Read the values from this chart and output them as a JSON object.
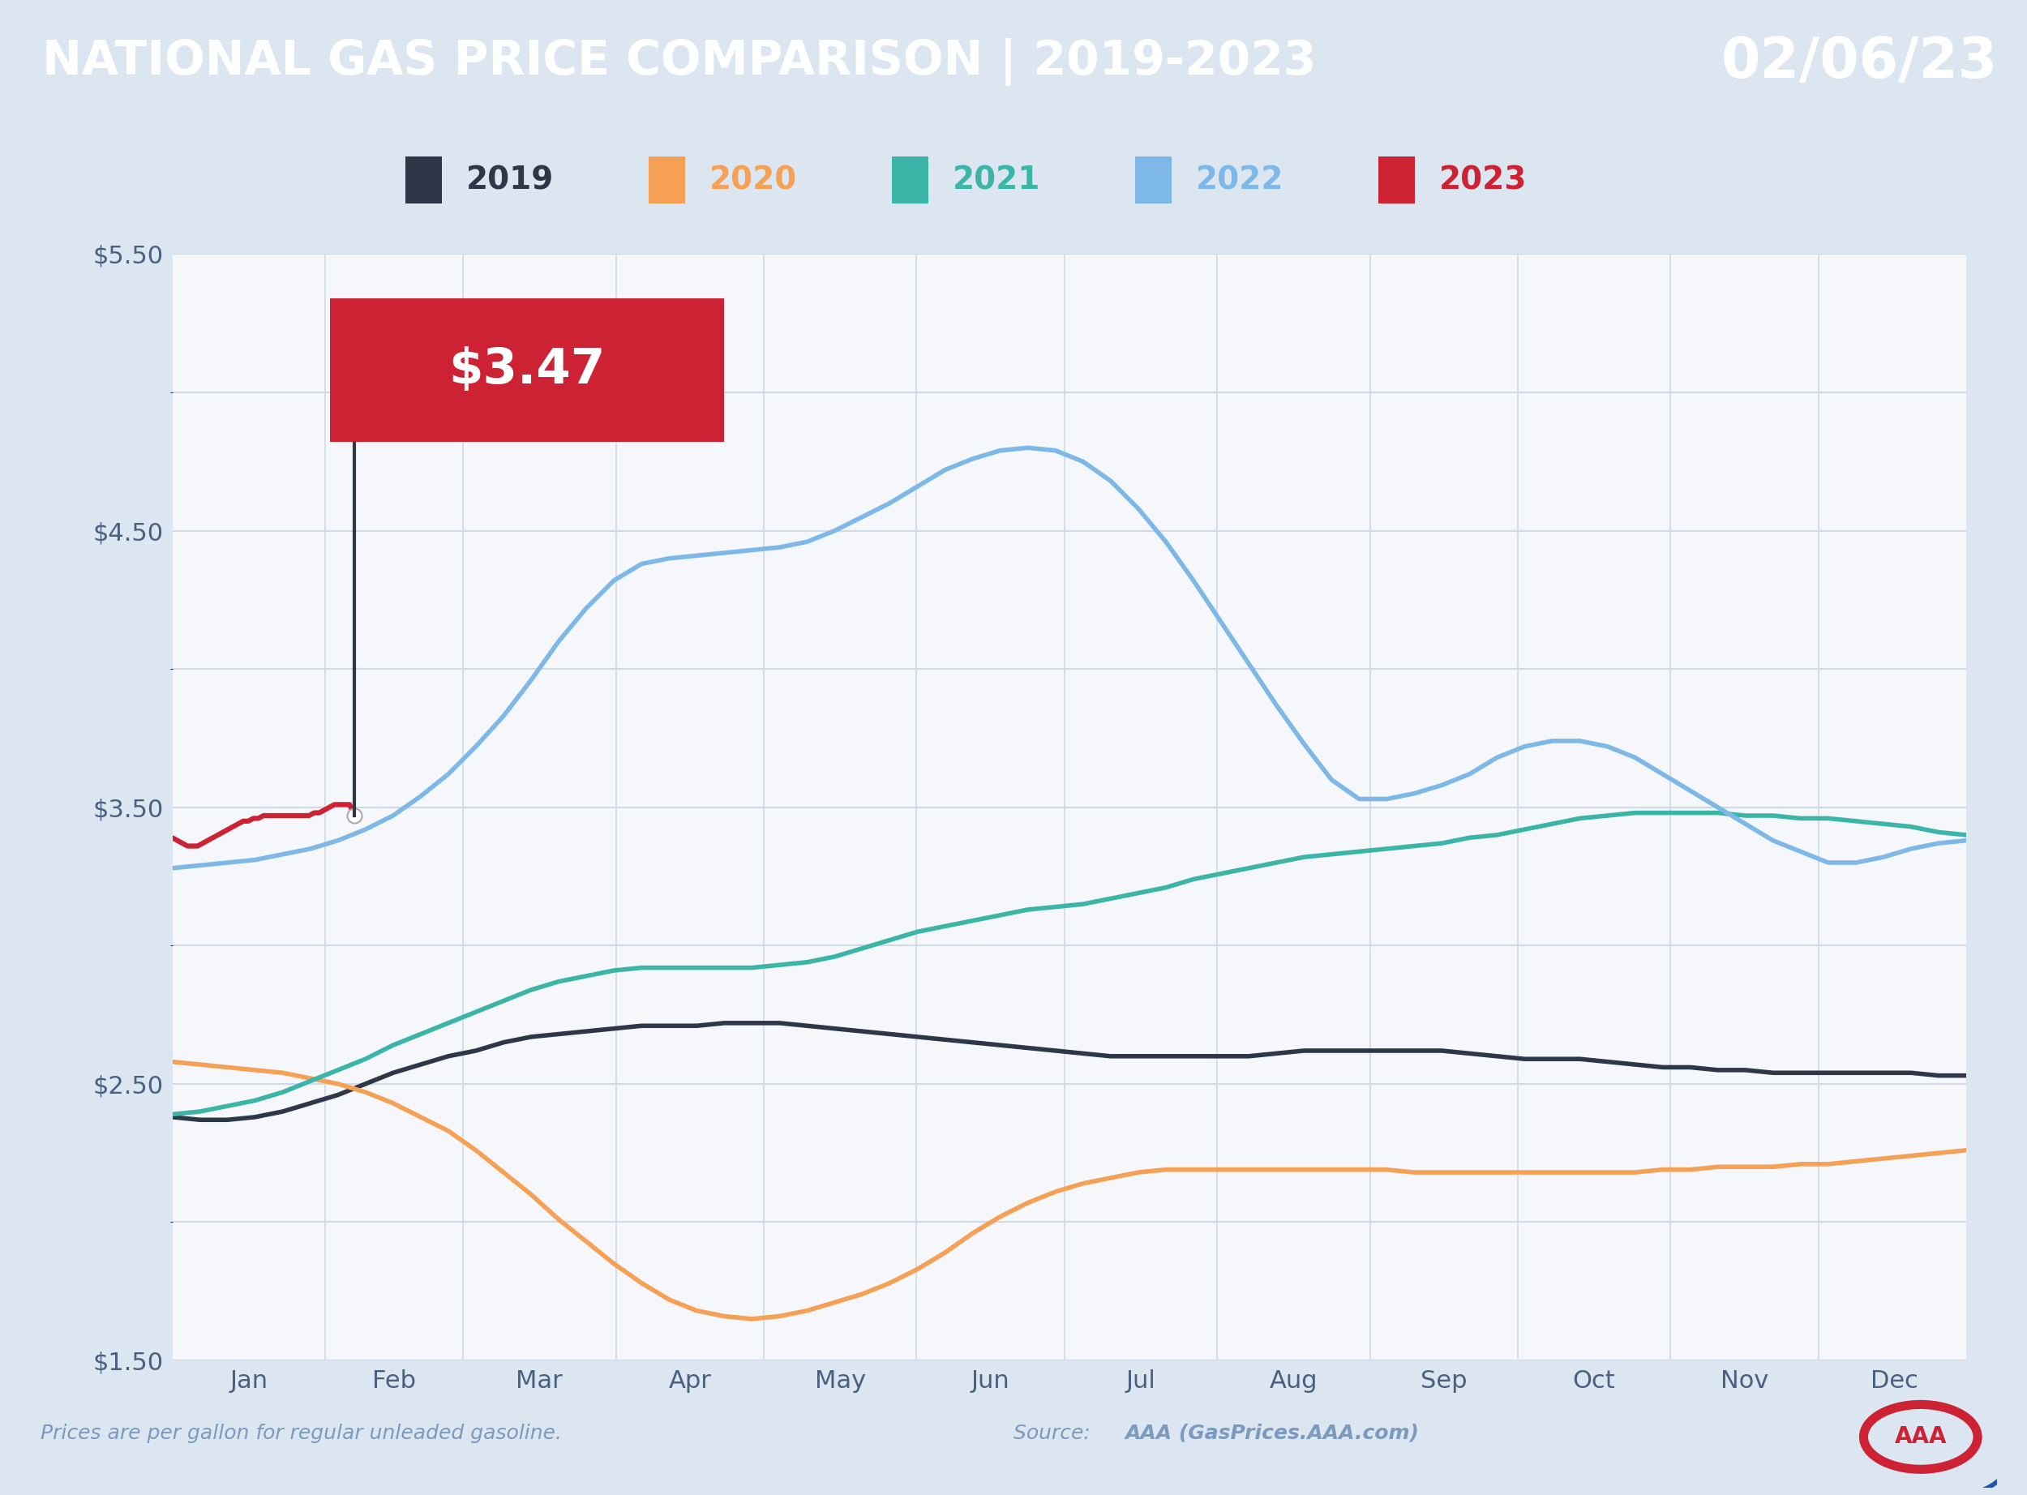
{
  "title_left": "NATIONAL GAS PRICE COMPARISON | 2019-2023",
  "title_right": "02/06/23",
  "title_bg_color": "#1b4f8c",
  "title_right_bg_color": "#5b9bd5",
  "title_text_color": "#ffffff",
  "background_color": "#dce6f0",
  "chart_bg_color": "#f5f7fa",
  "footer_text_left": "Prices are per gallon for regular unleaded gasoline.",
  "footer_text_right": "Source: ",
  "footer_text_right_bold": "AAA (GasPrices.AAA.com)",
  "footer_text_color": "#7a9abf",
  "legend_years": [
    "2019",
    "2020",
    "2021",
    "2022",
    "2023"
  ],
  "legend_colors": [
    "#2d3748",
    "#f5a054",
    "#3ab5a8",
    "#7db8e8",
    "#cc2233"
  ],
  "annotation_text": "$3.47",
  "annotation_box_color": "#cc2233",
  "annotation_text_color": "#ffffff",
  "ylim": [
    1.5,
    5.5
  ],
  "yticks": [
    1.5,
    2.5,
    3.5,
    4.5,
    5.5
  ],
  "ytick_labels": [
    "$1.50",
    "$2.50",
    "$3.50",
    "$4.50",
    "$5.50"
  ],
  "yticks_minor": [
    2.0,
    3.0,
    4.0,
    5.0
  ],
  "months": [
    "Jan",
    "Feb",
    "Mar",
    "Apr",
    "May",
    "Jun",
    "Jul",
    "Aug",
    "Sep",
    "Oct",
    "Nov",
    "Dec"
  ],
  "grid_color": "#d0dae6",
  "line_width": 4.0,
  "series_2019": [
    2.38,
    2.37,
    2.37,
    2.38,
    2.4,
    2.43,
    2.46,
    2.5,
    2.54,
    2.57,
    2.6,
    2.62,
    2.65,
    2.67,
    2.68,
    2.69,
    2.7,
    2.71,
    2.71,
    2.71,
    2.72,
    2.72,
    2.72,
    2.71,
    2.7,
    2.69,
    2.68,
    2.67,
    2.66,
    2.65,
    2.64,
    2.63,
    2.62,
    2.61,
    2.6,
    2.6,
    2.6,
    2.6,
    2.6,
    2.6,
    2.61,
    2.62,
    2.62,
    2.62,
    2.62,
    2.62,
    2.62,
    2.61,
    2.6,
    2.59,
    2.59,
    2.59,
    2.58,
    2.57,
    2.56,
    2.56,
    2.55,
    2.55,
    2.54,
    2.54,
    2.54,
    2.54,
    2.54,
    2.54,
    2.53,
    2.53
  ],
  "series_2020": [
    2.58,
    2.57,
    2.56,
    2.55,
    2.54,
    2.52,
    2.5,
    2.47,
    2.43,
    2.38,
    2.33,
    2.26,
    2.18,
    2.1,
    2.01,
    1.93,
    1.85,
    1.78,
    1.72,
    1.68,
    1.66,
    1.65,
    1.66,
    1.68,
    1.71,
    1.74,
    1.78,
    1.83,
    1.89,
    1.96,
    2.02,
    2.07,
    2.11,
    2.14,
    2.16,
    2.18,
    2.19,
    2.19,
    2.19,
    2.19,
    2.19,
    2.19,
    2.19,
    2.19,
    2.19,
    2.18,
    2.18,
    2.18,
    2.18,
    2.18,
    2.18,
    2.18,
    2.18,
    2.18,
    2.19,
    2.19,
    2.2,
    2.2,
    2.2,
    2.21,
    2.21,
    2.22,
    2.23,
    2.24,
    2.25,
    2.26
  ],
  "series_2021": [
    2.39,
    2.4,
    2.42,
    2.44,
    2.47,
    2.51,
    2.55,
    2.59,
    2.64,
    2.68,
    2.72,
    2.76,
    2.8,
    2.84,
    2.87,
    2.89,
    2.91,
    2.92,
    2.92,
    2.92,
    2.92,
    2.92,
    2.93,
    2.94,
    2.96,
    2.99,
    3.02,
    3.05,
    3.07,
    3.09,
    3.11,
    3.13,
    3.14,
    3.15,
    3.17,
    3.19,
    3.21,
    3.24,
    3.26,
    3.28,
    3.3,
    3.32,
    3.33,
    3.34,
    3.35,
    3.36,
    3.37,
    3.39,
    3.4,
    3.42,
    3.44,
    3.46,
    3.47,
    3.48,
    3.48,
    3.48,
    3.48,
    3.47,
    3.47,
    3.46,
    3.46,
    3.45,
    3.44,
    3.43,
    3.41,
    3.4
  ],
  "series_2022": [
    3.28,
    3.29,
    3.3,
    3.31,
    3.33,
    3.35,
    3.38,
    3.42,
    3.47,
    3.54,
    3.62,
    3.72,
    3.83,
    3.96,
    4.1,
    4.22,
    4.32,
    4.38,
    4.4,
    4.41,
    4.42,
    4.43,
    4.44,
    4.46,
    4.5,
    4.55,
    4.6,
    4.66,
    4.72,
    4.76,
    4.79,
    4.8,
    4.79,
    4.75,
    4.68,
    4.58,
    4.46,
    4.32,
    4.17,
    4.02,
    3.87,
    3.73,
    3.6,
    3.53,
    3.53,
    3.55,
    3.58,
    3.62,
    3.68,
    3.72,
    3.74,
    3.74,
    3.72,
    3.68,
    3.62,
    3.56,
    3.5,
    3.44,
    3.38,
    3.34,
    3.3,
    3.3,
    3.32,
    3.35,
    3.37,
    3.38
  ],
  "series_2023": [
    3.39,
    3.38,
    3.37,
    3.36,
    3.36,
    3.36,
    3.37,
    3.38,
    3.39,
    3.4,
    3.41,
    3.42,
    3.43,
    3.44,
    3.45,
    3.45,
    3.46,
    3.46,
    3.47,
    3.47,
    3.47,
    3.47,
    3.47,
    3.47,
    3.47,
    3.47,
    3.47,
    3.47,
    3.48,
    3.48,
    3.49,
    3.5,
    3.51,
    3.51,
    3.51,
    3.51,
    3.47
  ],
  "n_days_full": 365,
  "n_days_2023": 37
}
